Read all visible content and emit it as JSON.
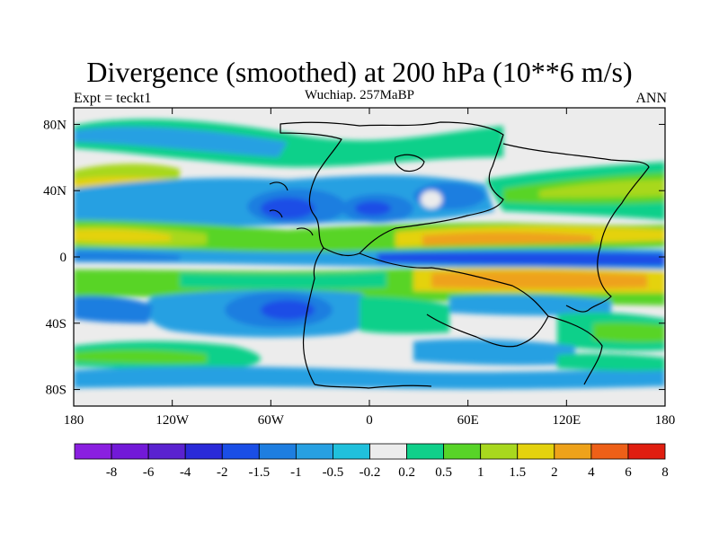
{
  "title": "Divergence (smoothed) at 200 hPa (10**6 m/s)",
  "subtitle_left": "Expt = teckt1",
  "subtitle_center": "Wuchiap. 257MaBP",
  "subtitle_right": "ANN",
  "chart_data": {
    "type": "heatmap",
    "title": "Divergence (smoothed) at 200 hPa (10**6 m/s)",
    "xlabel": "",
    "ylabel": "",
    "xlim": [
      -180,
      180
    ],
    "ylim": [
      -90,
      90
    ],
    "x_ticks": [
      {
        "value": -180,
        "label": "180"
      },
      {
        "value": -120,
        "label": "120W"
      },
      {
        "value": -60,
        "label": "60W"
      },
      {
        "value": 0,
        "label": "0"
      },
      {
        "value": 60,
        "label": "60E"
      },
      {
        "value": 120,
        "label": "120E"
      },
      {
        "value": 180,
        "label": "180"
      }
    ],
    "y_ticks": [
      {
        "value": 80,
        "label": "80N"
      },
      {
        "value": 40,
        "label": "40N"
      },
      {
        "value": 0,
        "label": "0"
      },
      {
        "value": -40,
        "label": "40S"
      },
      {
        "value": -80,
        "label": "80S"
      }
    ],
    "colorbar": {
      "levels": [
        "-8",
        "-6",
        "-4",
        "-2",
        "-1.5",
        "-1",
        "-0.5",
        "-0.2",
        "0.2",
        "0.5",
        "1",
        "1.5",
        "2",
        "4",
        "6",
        "8"
      ],
      "colors": [
        "#8a1fe0",
        "#7219d8",
        "#5a22d0",
        "#2a2ad8",
        "#1a4ee6",
        "#1e7ee0",
        "#27a0e2",
        "#20c0dc",
        "#ececec",
        "#10d08a",
        "#58d428",
        "#a8d81e",
        "#e4d20e",
        "#eea21a",
        "#ee6018",
        "#e01e10"
      ]
    },
    "features": [
      {
        "label": "divergence band",
        "lon": [
          30,
          180
        ],
        "lat": [
          5,
          15
        ],
        "value": 2
      },
      {
        "label": "divergence band",
        "lon": [
          40,
          170
        ],
        "lat": [
          -15,
          -5
        ],
        "value": 2
      },
      {
        "label": "convergence center",
        "lon": [
          -110,
          -70
        ],
        "lat": [
          25,
          40
        ],
        "value": -4
      },
      {
        "label": "convergence center",
        "lon": [
          -10,
          20
        ],
        "lat": [
          28,
          40
        ],
        "value": -2
      },
      {
        "label": "convergence center",
        "lon": [
          -110,
          -80
        ],
        "lat": [
          -40,
          -25
        ],
        "value": -4
      },
      {
        "label": "convergence band",
        "lon": [
          10,
          180
        ],
        "lat": [
          -5,
          3
        ],
        "value": -1.5
      }
    ]
  }
}
